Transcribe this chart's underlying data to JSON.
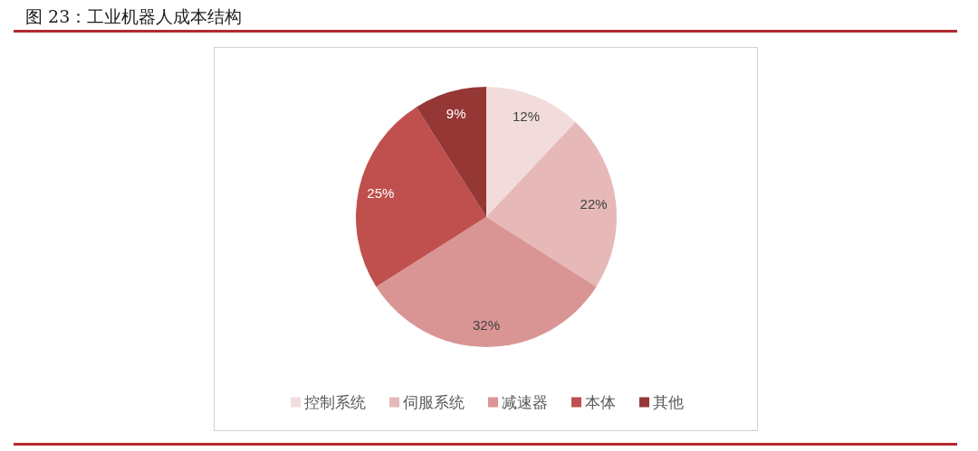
{
  "chart_data": {
    "type": "pie",
    "title": "图 23：工业机器人成本结构",
    "categories": [
      "控制系统",
      "伺服系统",
      "减速器",
      "本体",
      "其他"
    ],
    "values": [
      12,
      22,
      32,
      25,
      9
    ],
    "value_labels": [
      "12%",
      "22%",
      "32%",
      "25%",
      "9%"
    ],
    "colors": [
      "#f2dcdb",
      "#e6b9b8",
      "#d99594",
      "#c0504d",
      "#953735"
    ],
    "legend": "bottom"
  }
}
